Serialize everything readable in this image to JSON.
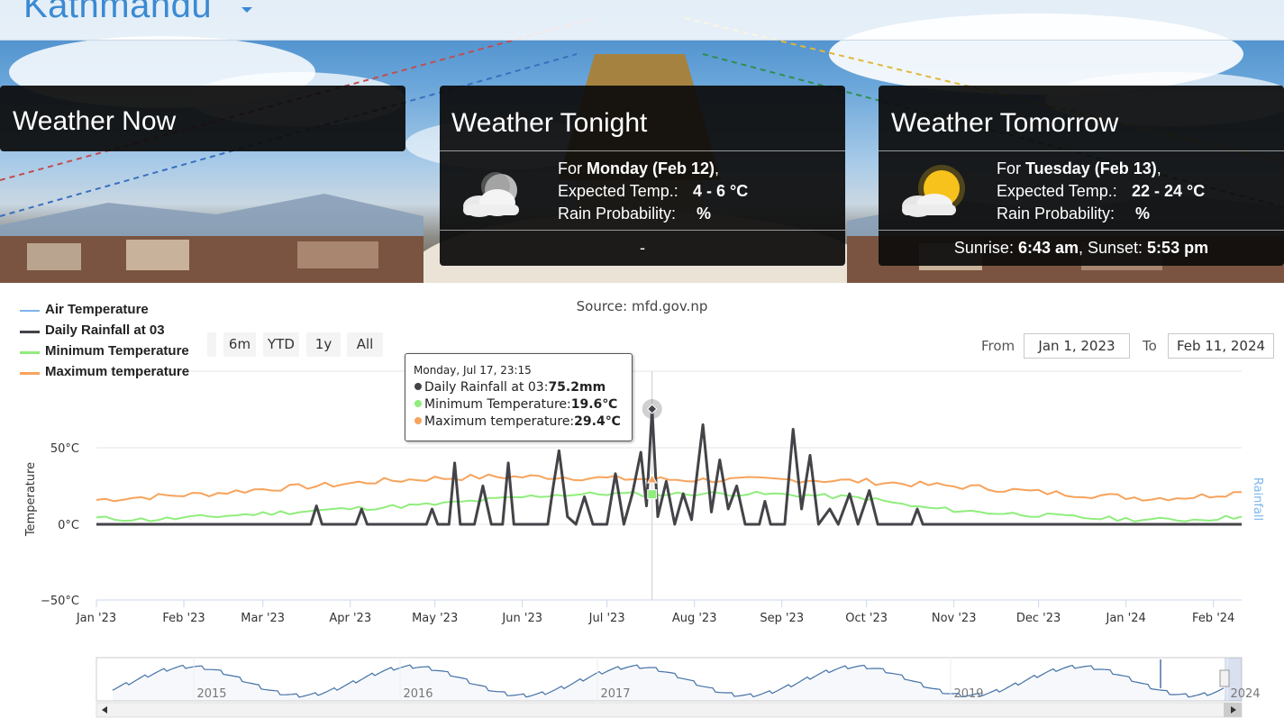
{
  "header": {
    "city": "Kathmandu"
  },
  "now": {
    "title": "Weather Now"
  },
  "tonight": {
    "title": "Weather Tonight",
    "for_prefix": "For ",
    "day": "Monday (Feb 12)",
    "day_suffix": ",",
    "temp_label": "Expected Temp.:",
    "temp_value": "4 - 6 °C",
    "rain_label": "Rain Probability:",
    "rain_value": "%",
    "footer": "-",
    "icon": "cloud-moon-icon"
  },
  "tomorrow": {
    "title": "Weather Tomorrow",
    "for_prefix": "For ",
    "day": "Tuesday (Feb 13)",
    "day_suffix": ",",
    "temp_label": "Expected Temp.:",
    "temp_value": "22 - 24 °C",
    "rain_label": "Rain Probability:",
    "rain_value": "%",
    "sunrise_label": "Sunrise: ",
    "sunrise_value": "6:43 am",
    "sunset_label": ", Sunset: ",
    "sunset_value": "5:53 pm",
    "icon": "sun-cloud-icon"
  },
  "chart_controls": {
    "source": "Source: mfd.gov.np",
    "range_buttons": [
      "6m",
      "YTD",
      "1y",
      "All"
    ],
    "from_label": "From",
    "from_value": "Jan 1, 2023",
    "to_label": "To",
    "to_value": "Feb 11, 2024"
  },
  "tooltip": {
    "header": "Monday, Jul 17, 23:15",
    "rows": [
      {
        "label": "Daily Rainfall at 03:",
        "value": "75.2mm",
        "color": "#434348"
      },
      {
        "label": "Minimum Temperature:",
        "value": "19.6℃",
        "color": "#90ed7d"
      },
      {
        "label": "Maximum temperature:",
        "value": "29.4℃",
        "color": "#f7a35c"
      }
    ]
  },
  "chart_data": {
    "type": "line",
    "ylabel": "Temperature",
    "y2label": "Rainfall",
    "ylim": [
      -50,
      50
    ],
    "yticks": [
      "50°C",
      "0°C",
      "−50°C"
    ],
    "x_ticks": [
      "Jan '23",
      "Feb '23",
      "Mar '23",
      "Apr '23",
      "May '23",
      "Jun '23",
      "Jul '23",
      "Aug '23",
      "Sep '23",
      "Oct '23",
      "Nov '23",
      "Dec '23",
      "Jan '24",
      "Feb '24"
    ],
    "xrange": [
      "2023-01-01",
      "2024-02-11"
    ],
    "legend": "top-left",
    "series": [
      {
        "name": "Air Temperature",
        "color": "#7cb5ec",
        "points": []
      },
      {
        "name": "Daily Rainfall at 03",
        "color": "#434348",
        "axis": "rainfall",
        "points": [
          [
            "2023-01-01",
            0
          ],
          [
            "2023-03-18",
            0
          ],
          [
            "2023-03-20",
            12
          ],
          [
            "2023-03-22",
            0
          ],
          [
            "2023-04-03",
            0
          ],
          [
            "2023-04-05",
            10
          ],
          [
            "2023-04-07",
            0
          ],
          [
            "2023-04-28",
            0
          ],
          [
            "2023-04-30",
            10
          ],
          [
            "2023-05-02",
            0
          ],
          [
            "2023-05-06",
            0
          ],
          [
            "2023-05-08",
            40
          ],
          [
            "2023-05-10",
            0
          ],
          [
            "2023-05-15",
            0
          ],
          [
            "2023-05-18",
            25
          ],
          [
            "2023-05-21",
            0
          ],
          [
            "2023-05-25",
            0
          ],
          [
            "2023-05-27",
            40
          ],
          [
            "2023-05-29",
            0
          ],
          [
            "2023-06-10",
            0
          ],
          [
            "2023-06-12",
            25
          ],
          [
            "2023-06-14",
            48
          ],
          [
            "2023-06-17",
            5
          ],
          [
            "2023-06-20",
            0
          ],
          [
            "2023-06-23",
            18
          ],
          [
            "2023-06-26",
            0
          ],
          [
            "2023-07-01",
            0
          ],
          [
            "2023-07-04",
            33
          ],
          [
            "2023-07-07",
            0
          ],
          [
            "2023-07-10",
            20
          ],
          [
            "2023-07-13",
            47
          ],
          [
            "2023-07-15",
            12
          ],
          [
            "2023-07-17",
            75.2
          ],
          [
            "2023-07-19",
            5
          ],
          [
            "2023-07-22",
            28
          ],
          [
            "2023-07-25",
            0
          ],
          [
            "2023-07-28",
            20
          ],
          [
            "2023-07-31",
            3
          ],
          [
            "2023-08-04",
            65
          ],
          [
            "2023-08-07",
            8
          ],
          [
            "2023-08-10",
            42
          ],
          [
            "2023-08-13",
            10
          ],
          [
            "2023-08-16",
            25
          ],
          [
            "2023-08-19",
            0
          ],
          [
            "2023-08-24",
            0
          ],
          [
            "2023-08-26",
            15
          ],
          [
            "2023-08-28",
            0
          ],
          [
            "2023-09-02",
            0
          ],
          [
            "2023-09-05",
            62
          ],
          [
            "2023-09-08",
            10
          ],
          [
            "2023-09-11",
            45
          ],
          [
            "2023-09-14",
            0
          ],
          [
            "2023-09-18",
            10
          ],
          [
            "2023-09-21",
            0
          ],
          [
            "2023-09-25",
            20
          ],
          [
            "2023-09-28",
            0
          ],
          [
            "2023-10-02",
            22
          ],
          [
            "2023-10-05",
            0
          ],
          [
            "2023-10-17",
            0
          ],
          [
            "2023-10-19",
            10
          ],
          [
            "2023-10-21",
            0
          ],
          [
            "2024-02-11",
            0
          ]
        ]
      },
      {
        "name": "Minimum Temperature",
        "color": "#90ed7d",
        "points": [
          [
            "2023-01-01",
            4
          ],
          [
            "2023-01-20",
            3
          ],
          [
            "2023-02-10",
            5
          ],
          [
            "2023-03-01",
            7
          ],
          [
            "2023-03-20",
            9
          ],
          [
            "2023-04-10",
            11
          ],
          [
            "2023-05-01",
            13
          ],
          [
            "2023-05-20",
            16
          ],
          [
            "2023-06-10",
            19
          ],
          [
            "2023-07-01",
            20
          ],
          [
            "2023-07-17",
            19.6
          ],
          [
            "2023-08-01",
            20
          ],
          [
            "2023-08-20",
            20
          ],
          [
            "2023-09-10",
            19
          ],
          [
            "2023-10-01",
            17
          ],
          [
            "2023-10-20",
            11
          ],
          [
            "2023-11-10",
            8
          ],
          [
            "2023-12-01",
            6
          ],
          [
            "2023-12-20",
            4
          ],
          [
            "2024-01-10",
            3
          ],
          [
            "2024-01-25",
            3
          ],
          [
            "2024-02-11",
            5
          ]
        ]
      },
      {
        "name": "Maximum temperature",
        "color": "#f7a35c",
        "points": [
          [
            "2023-01-01",
            16
          ],
          [
            "2023-01-20",
            18
          ],
          [
            "2023-02-10",
            20
          ],
          [
            "2023-03-01",
            23
          ],
          [
            "2023-03-20",
            25
          ],
          [
            "2023-04-10",
            28
          ],
          [
            "2023-05-01",
            30
          ],
          [
            "2023-05-20",
            31
          ],
          [
            "2023-06-10",
            31
          ],
          [
            "2023-07-01",
            30
          ],
          [
            "2023-07-17",
            29.4
          ],
          [
            "2023-08-01",
            29
          ],
          [
            "2023-08-20",
            29
          ],
          [
            "2023-09-10",
            29
          ],
          [
            "2023-10-01",
            28
          ],
          [
            "2023-10-20",
            26
          ],
          [
            "2023-11-10",
            24
          ],
          [
            "2023-12-01",
            21
          ],
          [
            "2023-12-20",
            19
          ],
          [
            "2024-01-10",
            17
          ],
          [
            "2024-01-25",
            18
          ],
          [
            "2024-02-11",
            21
          ]
        ]
      }
    ],
    "navigator": {
      "years": [
        "2015",
        "2016",
        "2017",
        "2019",
        "2024"
      ]
    }
  }
}
